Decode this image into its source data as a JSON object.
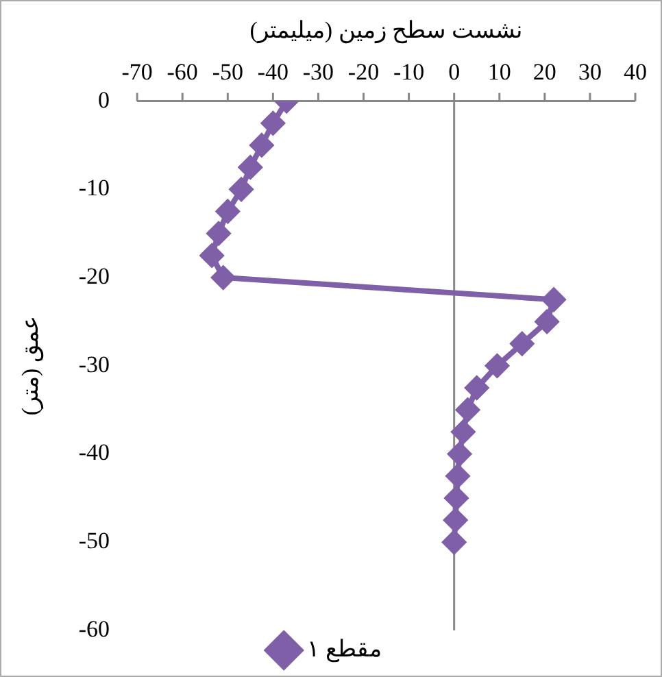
{
  "chart_data": {
    "type": "line",
    "xlabel": "نشست سطح زمین (میلیمتر)",
    "ylabel": "عمق (متر)",
    "xlim": [
      -70,
      40
    ],
    "xticks": [
      -70,
      -60,
      -50,
      -40,
      -30,
      -20,
      -10,
      0,
      10,
      20,
      30,
      40
    ],
    "ylim": [
      -60,
      0
    ],
    "yticks": [
      -60,
      -50,
      -40,
      -30,
      -20,
      -10,
      0
    ],
    "legend": "bottom",
    "marker": "diamond",
    "line_style": "solid",
    "series": [
      {
        "name": "مقطع ۱",
        "color": "#7f60a8",
        "x": [
          -37,
          -40,
          -42.5,
          -45,
          -47,
          -50,
          -52,
          -53.5,
          -51,
          22,
          20.5,
          15,
          9.5,
          5,
          3,
          2,
          1.2,
          0.8,
          0.5,
          0.3,
          0
        ],
        "values": [
          0,
          -2.5,
          -5,
          -7.5,
          -10,
          -12.5,
          -15,
          -17.5,
          -20,
          -22.5,
          -25,
          -27.5,
          -30,
          -32.5,
          -35,
          -37.5,
          -40,
          -42.5,
          -45,
          -47.5,
          -50
        ]
      }
    ]
  }
}
